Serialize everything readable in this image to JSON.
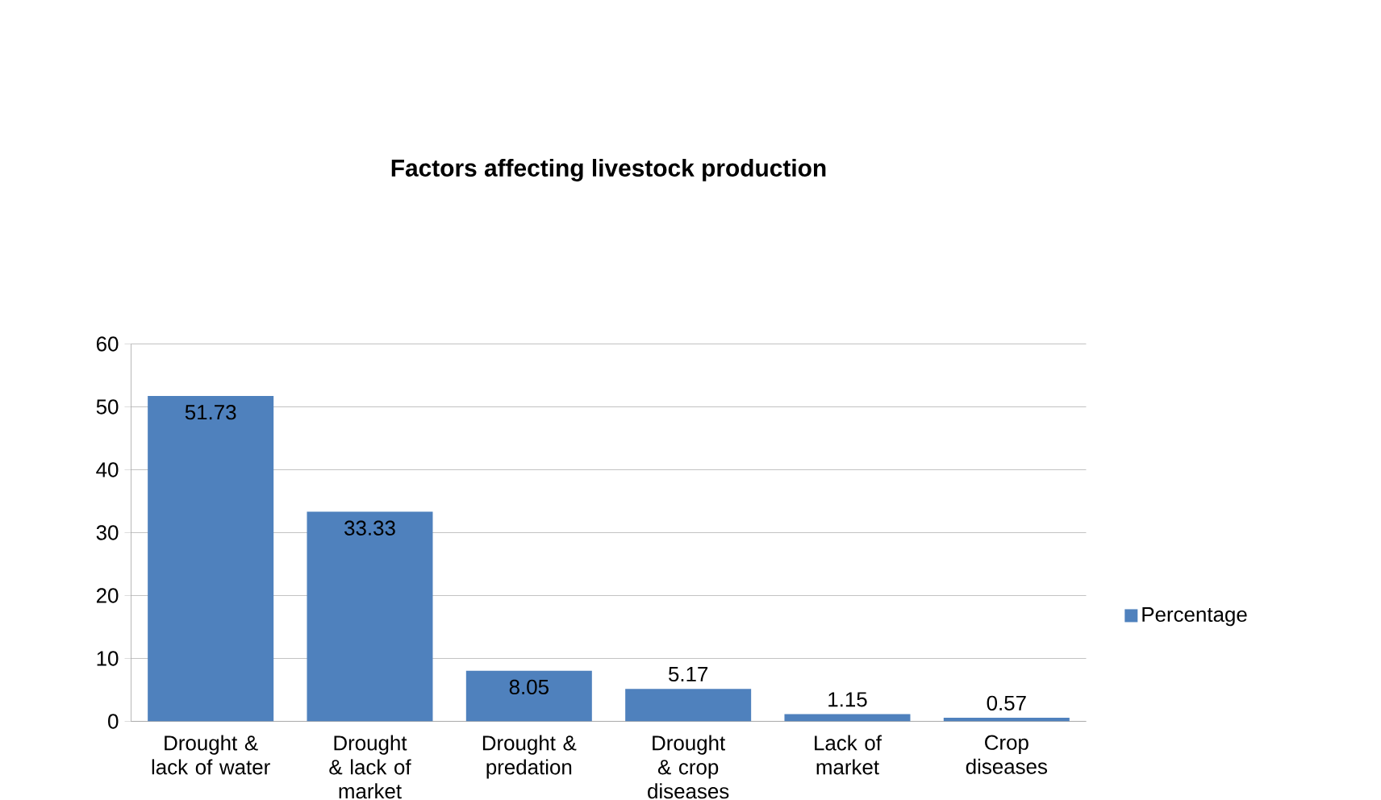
{
  "chart_data": {
    "type": "bar",
    "title": "Factors affecting livestock production",
    "categories": [
      "Drought & lack of water",
      "Drought & lack of market",
      "Drought & predation",
      "Drought & crop diseases",
      "Lack of market",
      "Crop diseases"
    ],
    "series": [
      {
        "name": "Percentage",
        "color": "#4f81bd",
        "values": [
          51.73,
          33.33,
          8.05,
          5.17,
          1.15,
          0.57
        ]
      }
    ],
    "ylim": [
      0,
      60
    ],
    "yticks": [
      0,
      10,
      20,
      30,
      40,
      50,
      60
    ],
    "grid": "y",
    "legend": "right",
    "data_labels": true
  }
}
